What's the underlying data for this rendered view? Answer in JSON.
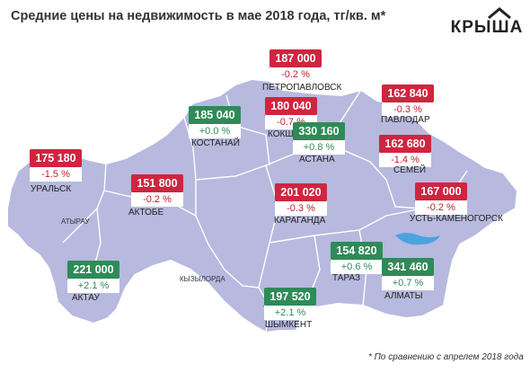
{
  "title": "Средние цены на недвижимость в мае 2018 года, тг/кв. м*",
  "logo": {
    "text": "КРЫША"
  },
  "footnote": "* По сравнению с апрелем 2018 года",
  "colors": {
    "map_fill": "#b7b9de",
    "map_stroke": "#ffffff",
    "increase": "#2e8b57",
    "decrease": "#d0253f",
    "lake": "#4aa3df"
  },
  "regions": [
    "АТЫРАУ",
    "КЫЗЫЛОРДА"
  ],
  "cities": [
    {
      "name": "ПЕТРОПАВЛОВСК",
      "price": "187 000",
      "change": "-0.2 %",
      "trend": "down"
    },
    {
      "name": "КОСТАНАЙ",
      "price": "185 040",
      "change": "+0.0 %",
      "trend": "up"
    },
    {
      "name": "КОКШЕТАУ",
      "price": "180 040",
      "change": "-0.7 %",
      "trend": "down"
    },
    {
      "name": "ПАВЛОДАР",
      "price": "162 840",
      "change": "-0.3 %",
      "trend": "down"
    },
    {
      "name": "АСТАНА",
      "price": "330 160",
      "change": "+0.8 %",
      "trend": "up"
    },
    {
      "name": "СЕМЕЙ",
      "price": "162 680",
      "change": "-1.4 %",
      "trend": "down"
    },
    {
      "name": "УРАЛЬСК",
      "price": "175 180",
      "change": "-1.5 %",
      "trend": "down"
    },
    {
      "name": "АКТОБЕ",
      "price": "151 800",
      "change": "-0.2 %",
      "trend": "down"
    },
    {
      "name": "КАРАГАНДА",
      "price": "201 020",
      "change": "-0.3 %",
      "trend": "down"
    },
    {
      "name": "УСТЬ-КАМЕНОГОРСК",
      "price": "167 000",
      "change": "-0.2 %",
      "trend": "down"
    },
    {
      "name": "АКТАУ",
      "price": "221 000",
      "change": "+2.1 %",
      "trend": "up"
    },
    {
      "name": "ТАРАЗ",
      "price": "154 820",
      "change": "+0.6 %",
      "trend": "up"
    },
    {
      "name": "АЛМАТЫ",
      "price": "341 460",
      "change": "+0.7 %",
      "trend": "up"
    },
    {
      "name": "ШЫМКЕНТ",
      "price": "197 520",
      "change": "+2.1 %",
      "trend": "up"
    }
  ]
}
